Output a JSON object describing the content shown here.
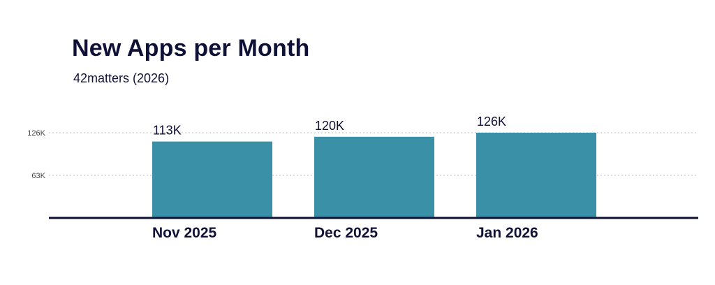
{
  "chart_data": {
    "type": "bar",
    "title": "New Apps per Month",
    "subtitle": "42matters (2026)",
    "categories": [
      "Nov 2025",
      "Dec 2025",
      "Jan 2026"
    ],
    "values": [
      113000,
      120000,
      126000
    ],
    "data_labels": [
      "113K",
      "120K",
      "126K"
    ],
    "yticks": [
      63000,
      126000
    ],
    "ytick_labels": [
      "63K",
      "126K"
    ],
    "ylim": [
      0,
      126000
    ],
    "grid": true,
    "bar_color": "#3a90a6",
    "axis_color": "#0f1136",
    "grid_color": "#bbbbbb"
  }
}
